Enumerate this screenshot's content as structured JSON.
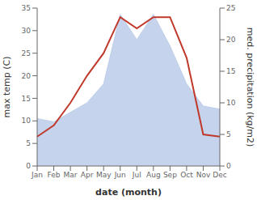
{
  "chart_data": {
    "type": "line",
    "x_label": "date (month)",
    "y_label": "max temp (C)",
    "y2_label": "med. precipitation (kg/m2)",
    "categories": [
      "Jan",
      "Feb",
      "Mar",
      "Apr",
      "May",
      "Jun",
      "Jul",
      "Aug",
      "Sep",
      "Oct",
      "Nov",
      "Dec"
    ],
    "series": [
      {
        "type": "area",
        "axis": "y2",
        "color": "#bfcfea",
        "values": [
          7.5,
          7.0,
          8.5,
          10.0,
          13.0,
          24.0,
          20.0,
          24.0,
          19.0,
          13.0,
          9.5,
          9.0
        ]
      },
      {
        "type": "line",
        "axis": "y",
        "color": "#c0392b",
        "values": [
          6.5,
          9.0,
          14.0,
          20.0,
          25.0,
          33.0,
          30.5,
          33.0,
          33.0,
          24.0,
          7.0,
          6.5
        ]
      }
    ],
    "ylim": [
      0,
      35
    ],
    "yticks": [
      0,
      5,
      10,
      15,
      20,
      25,
      30,
      35
    ],
    "y2lim": [
      0,
      25
    ],
    "y2ticks": [
      0,
      5,
      10,
      15,
      20,
      25
    ],
    "grid": false
  }
}
